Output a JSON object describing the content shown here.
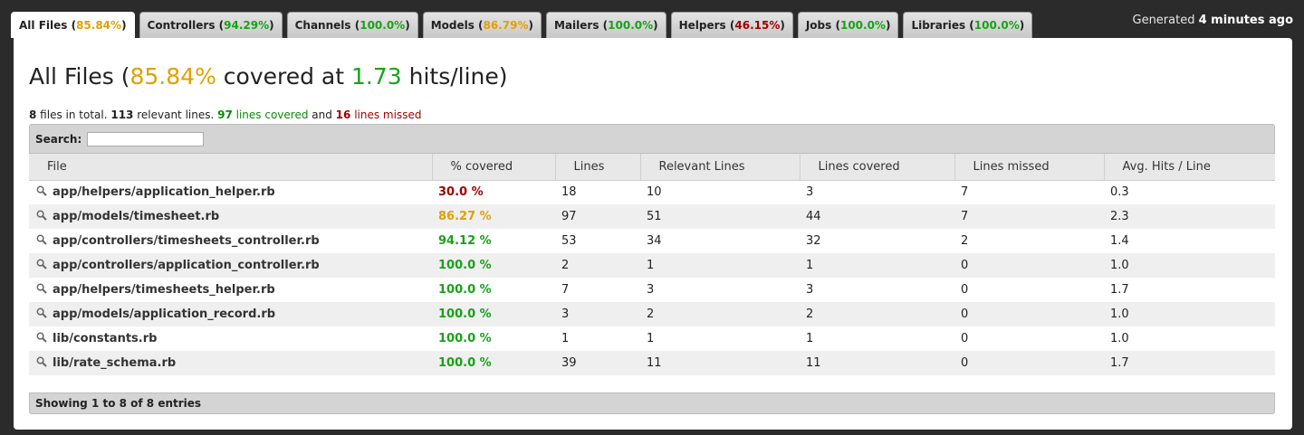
{
  "tabs": [
    {
      "name": "All Files",
      "pct": "85.84%",
      "color": "yellow",
      "active": true
    },
    {
      "name": "Controllers",
      "pct": "94.29%",
      "color": "green"
    },
    {
      "name": "Channels",
      "pct": "100.0%",
      "color": "green"
    },
    {
      "name": "Models",
      "pct": "86.79%",
      "color": "yellow"
    },
    {
      "name": "Mailers",
      "pct": "100.0%",
      "color": "green"
    },
    {
      "name": "Helpers",
      "pct": "46.15%",
      "color": "red"
    },
    {
      "name": "Jobs",
      "pct": "100.0%",
      "color": "green"
    },
    {
      "name": "Libraries",
      "pct": "100.0%",
      "color": "green"
    }
  ],
  "generated": {
    "prefix": "Generated",
    "value": "4 minutes ago"
  },
  "title": {
    "prefix": "All Files (",
    "pct": "85.84%",
    "middle": " covered at ",
    "hits": "1.73",
    "suffix": " hits/line)"
  },
  "summary": {
    "files": "8",
    "files_text": " files in total. ",
    "relevant": "113",
    "relevant_text": " relevant lines. ",
    "covered": "97",
    "covered_text": " lines covered",
    "and_text": " and ",
    "missed": "16",
    "missed_text": " lines missed"
  },
  "search": {
    "label": "Search:",
    "value": ""
  },
  "columns": [
    "File",
    "% covered",
    "Lines",
    "Relevant Lines",
    "Lines covered",
    "Lines missed",
    "Avg. Hits / Line"
  ],
  "rows": [
    {
      "file": "app/helpers/application_helper.rb",
      "cov": "30.0 %",
      "color": "red",
      "lines": "18",
      "relevant": "10",
      "covered": "3",
      "missed": "7",
      "avg": "0.3"
    },
    {
      "file": "app/models/timesheet.rb",
      "cov": "86.27 %",
      "color": "yellow",
      "lines": "97",
      "relevant": "51",
      "covered": "44",
      "missed": "7",
      "avg": "2.3"
    },
    {
      "file": "app/controllers/timesheets_controller.rb",
      "cov": "94.12 %",
      "color": "green",
      "lines": "53",
      "relevant": "34",
      "covered": "32",
      "missed": "2",
      "avg": "1.4"
    },
    {
      "file": "app/controllers/application_controller.rb",
      "cov": "100.0 %",
      "color": "green",
      "lines": "2",
      "relevant": "1",
      "covered": "1",
      "missed": "0",
      "avg": "1.0"
    },
    {
      "file": "app/helpers/timesheets_helper.rb",
      "cov": "100.0 %",
      "color": "green",
      "lines": "7",
      "relevant": "3",
      "covered": "3",
      "missed": "0",
      "avg": "1.7"
    },
    {
      "file": "app/models/application_record.rb",
      "cov": "100.0 %",
      "color": "green",
      "lines": "3",
      "relevant": "2",
      "covered": "2",
      "missed": "0",
      "avg": "1.0"
    },
    {
      "file": "lib/constants.rb",
      "cov": "100.0 %",
      "color": "green",
      "lines": "1",
      "relevant": "1",
      "covered": "1",
      "missed": "0",
      "avg": "1.0"
    },
    {
      "file": "lib/rate_schema.rb",
      "cov": "100.0 %",
      "color": "green",
      "lines": "39",
      "relevant": "11",
      "covered": "11",
      "missed": "0",
      "avg": "1.7"
    }
  ],
  "footer": "Showing 1 to 8 of 8 entries",
  "colors": {
    "yellow": "#e0a000",
    "green": "#19a119",
    "red": "#a00000"
  }
}
